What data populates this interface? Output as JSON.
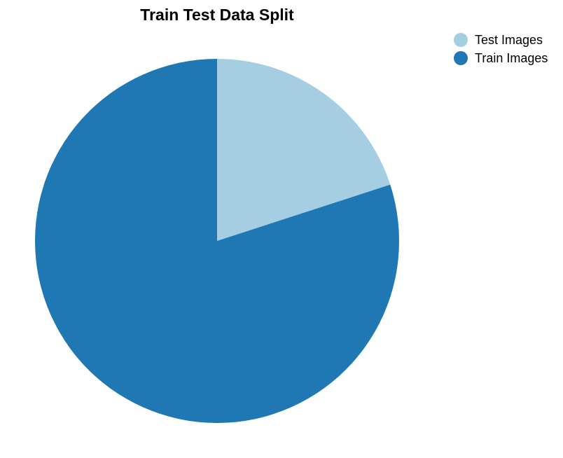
{
  "chart_data": {
    "type": "pie",
    "title": "Train Test Data Split",
    "categories": [
      "Test Images",
      "Train Images"
    ],
    "values": [
      20,
      80
    ],
    "colors": [
      "#a6cee3",
      "#1f78b4"
    ],
    "start_angle_deg": 0,
    "direction": "clockwise",
    "legend_position": "top-right"
  }
}
